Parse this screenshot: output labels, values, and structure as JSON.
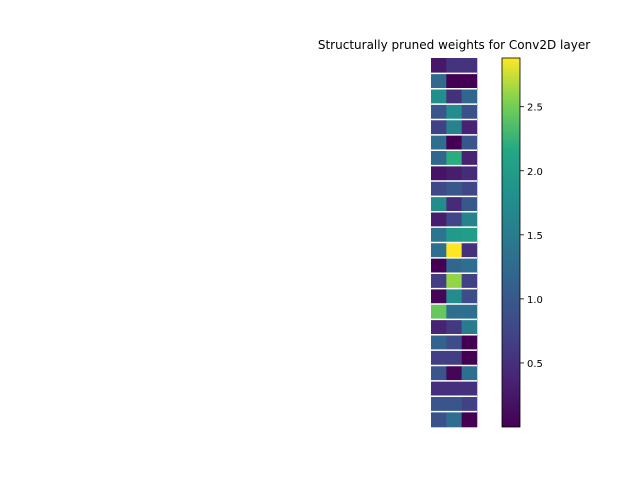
{
  "chart_data": {
    "type": "heatmap",
    "title": "Structurally pruned weights for Conv2D layer",
    "xlabel": "",
    "ylabel": "",
    "colormap": "viridis",
    "colorbar": {
      "ticks": [
        0.5,
        1.0,
        1.5,
        2.0,
        2.5
      ],
      "tick_labels": [
        "0.5",
        "1.0",
        "1.5",
        "2.0",
        "2.5"
      ],
      "range": [
        0.0,
        2.88
      ]
    },
    "rows": 24,
    "cols": 3,
    "row_separators": true,
    "values": [
      [
        0.25,
        0.55,
        0.55
      ],
      [
        1.25,
        0.0,
        0.0
      ],
      [
        1.8,
        0.5,
        1.2
      ],
      [
        0.95,
        1.75,
        0.9
      ],
      [
        0.7,
        1.6,
        0.35
      ],
      [
        1.3,
        0.0,
        0.95
      ],
      [
        1.2,
        2.2,
        0.35
      ],
      [
        0.2,
        0.3,
        0.45
      ],
      [
        0.8,
        1.0,
        0.75
      ],
      [
        1.75,
        0.45,
        1.0
      ],
      [
        0.3,
        0.75,
        1.6
      ],
      [
        1.4,
        1.95,
        2.0
      ],
      [
        1.3,
        2.88,
        0.5
      ],
      [
        0.0,
        1.2,
        1.3
      ],
      [
        0.65,
        2.6,
        0.7
      ],
      [
        0.05,
        1.75,
        0.85
      ],
      [
        2.45,
        1.3,
        1.3
      ],
      [
        0.35,
        0.6,
        1.5
      ],
      [
        1.15,
        0.85,
        0.0
      ],
      [
        0.65,
        0.65,
        0.0
      ],
      [
        0.95,
        0.05,
        1.3
      ],
      [
        0.5,
        0.5,
        0.5
      ],
      [
        0.95,
        0.95,
        0.7
      ],
      [
        0.9,
        1.3,
        0.0
      ]
    ]
  }
}
